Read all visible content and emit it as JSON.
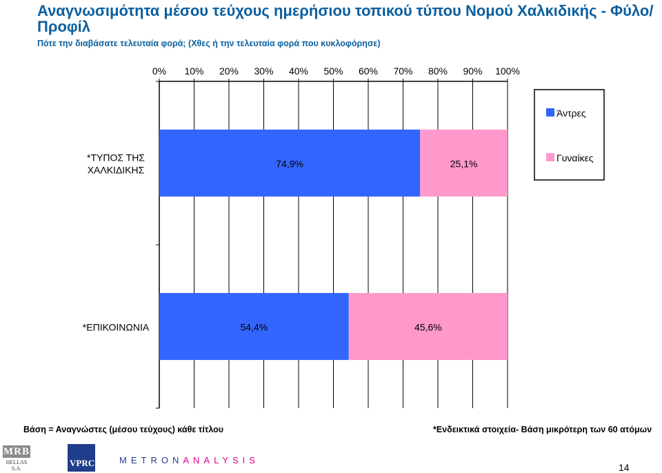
{
  "header": {
    "title": "Αναγνωσιμότητα μέσου τεύχους ημερήσιου τοπικού τύπου Νομού Χαλκιδικής - Φύλο/ Προφίλ",
    "subtitle": "Πότε την διαβάσατε τελευταία φορά; (Χθες ή την τελευταία φορά που κυκλοφόρησε)"
  },
  "chart_data": {
    "type": "bar",
    "orientation": "horizontal",
    "stacked": true,
    "percent_stacked": true,
    "categories": [
      "*ΤΥΠΟΣ ΤΗΣ ΧΑΛΚΙΔΙΚΗΣ",
      "*ΕΠΙΚΟΙΝΩΝΙΑ"
    ],
    "series": [
      {
        "name": "Άντρες",
        "values": [
          74.9,
          54.4
        ],
        "labels": [
          "74,9%",
          "54,4%"
        ],
        "color": "#3366ff"
      },
      {
        "name": "Γυναίκες",
        "values": [
          25.1,
          45.6
        ],
        "labels": [
          "25,1%",
          "45,6%"
        ],
        "color": "#ff99cc"
      }
    ],
    "x_ticks": [
      "0%",
      "10%",
      "20%",
      "30%",
      "40%",
      "50%",
      "60%",
      "70%",
      "80%",
      "90%",
      "100%"
    ],
    "xlim": [
      0,
      100
    ],
    "grid": true,
    "legend_position": "right"
  },
  "footer": {
    "base_note": "Βάση = Αναγνώστες (μέσου τεύχους) κάθε τίτλου",
    "small_base_note": "*Ενδεικτικά στοιχεία- Βάση μικρότερη των 60 ατόμων",
    "page_number": "14",
    "logo_mrb": "MRB",
    "logo_mrb_sub": "HELLAS S.A.",
    "logo_vprc": "VPRC",
    "logo_metron_1": "METRON",
    "logo_metron_2": "ANALYSIS"
  }
}
